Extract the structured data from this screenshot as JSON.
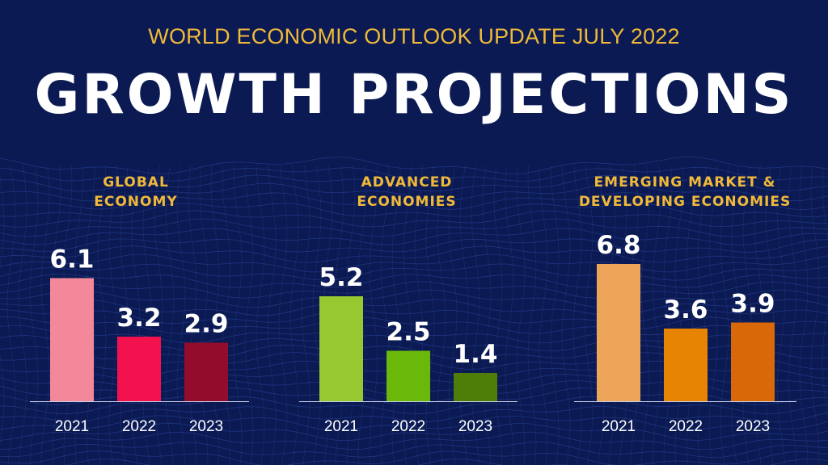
{
  "header": {
    "supertitle": "WORLD ECONOMIC OUTLOOK UPDATE JULY 2022",
    "title": "GROWTH PROJECTIONS"
  },
  "colors": {
    "background": "#0b1a52",
    "accent": "#f0b93a",
    "grid": "#2f4aa8"
  },
  "chart_data": [
    {
      "type": "bar",
      "title": "GLOBAL\nECONOMY",
      "categories": [
        "2021",
        "2022",
        "2023"
      ],
      "values": [
        6.1,
        3.2,
        2.9
      ],
      "data_labels": [
        "6.1",
        "3.2",
        "2.9"
      ],
      "colors": [
        "#f4889b",
        "#f2124e",
        "#930c2c"
      ],
      "ylim": [
        0,
        6.8
      ],
      "grid": false,
      "legend": "none"
    },
    {
      "type": "bar",
      "title": "ADVANCED\nECONOMIES",
      "categories": [
        "2021",
        "2022",
        "2023"
      ],
      "values": [
        5.2,
        2.5,
        1.4
      ],
      "data_labels": [
        "5.2",
        "2.5",
        "1.4"
      ],
      "colors": [
        "#96c92f",
        "#6ab90a",
        "#4e7e08"
      ],
      "ylim": [
        0,
        6.8
      ],
      "grid": false,
      "legend": "none"
    },
    {
      "type": "bar",
      "title": "EMERGING MARKET &\nDEVELOPING ECONOMIES",
      "categories": [
        "2021",
        "2022",
        "2023"
      ],
      "values": [
        6.8,
        3.6,
        3.9
      ],
      "data_labels": [
        "6.8",
        "3.6",
        "3.9"
      ],
      "colors": [
        "#eda55a",
        "#e78404",
        "#d96908"
      ],
      "ylim": [
        0,
        6.8
      ],
      "grid": false,
      "legend": "none"
    }
  ]
}
